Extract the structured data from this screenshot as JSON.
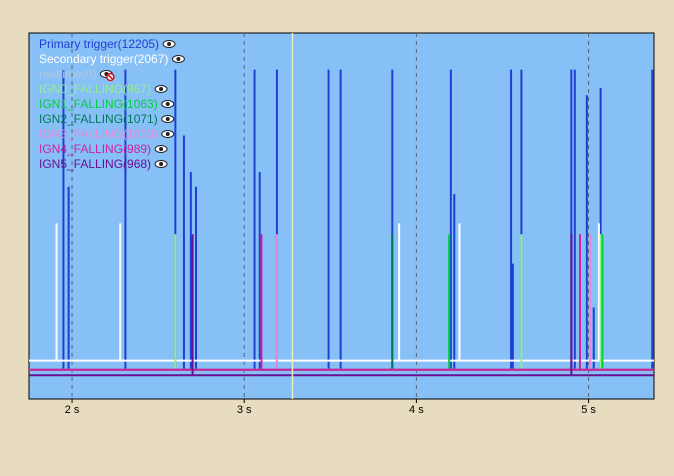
{
  "chart_data": {
    "type": "line",
    "title": "",
    "xlabel": "",
    "ylabel": "",
    "xlim": [
      1.75,
      5.38
    ],
    "x_ticks": [
      {
        "value": 2,
        "label": "2 s"
      },
      {
        "value": 3,
        "label": "3 s"
      },
      {
        "value": 4,
        "label": "4 s"
      },
      {
        "value": 5,
        "label": "5 s"
      }
    ],
    "grid": "vertical-dashed",
    "legend_position": "top-left",
    "background_color": "#87bff7",
    "cursor_x": 3.28,
    "series": [
      {
        "name": "Primary trigger(12205)",
        "color": "#1f3fd0",
        "baseline": 0.08,
        "events": [
          {
            "x": 1.95,
            "level": 0.9
          },
          {
            "x": 1.98,
            "level": 0.58
          },
          {
            "x": 2.31,
            "level": 0.9
          },
          {
            "x": 2.6,
            "level": 0.9
          },
          {
            "x": 2.65,
            "level": 0.72
          },
          {
            "x": 2.69,
            "level": 0.62
          },
          {
            "x": 2.72,
            "level": 0.58
          },
          {
            "x": 3.06,
            "level": 0.9
          },
          {
            "x": 3.09,
            "level": 0.62
          },
          {
            "x": 3.19,
            "level": 0.9
          },
          {
            "x": 3.49,
            "level": 0.9
          },
          {
            "x": 3.56,
            "level": 0.9
          },
          {
            "x": 3.86,
            "level": 0.9
          },
          {
            "x": 4.2,
            "level": 0.9
          },
          {
            "x": 4.22,
            "level": 0.56
          },
          {
            "x": 4.55,
            "level": 0.9
          },
          {
            "x": 4.56,
            "level": 0.37
          },
          {
            "x": 4.61,
            "level": 0.9
          },
          {
            "x": 4.9,
            "level": 0.9
          },
          {
            "x": 4.92,
            "level": 0.9
          },
          {
            "x": 4.99,
            "level": 0.83
          },
          {
            "x": 5.03,
            "level": 0.25
          },
          {
            "x": 5.07,
            "level": 0.85
          },
          {
            "x": 5.37,
            "level": 0.9
          }
        ]
      },
      {
        "name": "Secondary trigger(2067)",
        "color": "#ffffff",
        "baseline": 0.105,
        "events": [
          {
            "x": 1.91,
            "level": 0.48
          },
          {
            "x": 2.28,
            "level": 0.48
          },
          {
            "x": 3.9,
            "level": 0.48
          },
          {
            "x": 4.25,
            "level": 0.48
          },
          {
            "x": 5.06,
            "level": 0.48
          }
        ]
      },
      {
        "name": "realtime(0)",
        "color": "#b0c8e0",
        "baseline": null,
        "events": []
      },
      {
        "name": "IGN0_FALLING(967)",
        "color": "#90f090",
        "baseline": 0.08,
        "events": [
          {
            "x": 2.6,
            "level": 0.45
          },
          {
            "x": 4.61,
            "level": 0.45
          },
          {
            "x": 5.07,
            "level": 0.45
          }
        ]
      },
      {
        "name": "IGN1_FALLING(1063)",
        "color": "#00d040",
        "baseline": 0.08,
        "events": [
          {
            "x": 4.19,
            "level": 0.45
          },
          {
            "x": 5.08,
            "level": 0.45
          }
        ]
      },
      {
        "name": "IGN2_FALLING(1071)",
        "color": "#007a5a",
        "baseline": 0.08,
        "events": [
          {
            "x": 3.86,
            "level": 0.45
          }
        ]
      },
      {
        "name": "IGN3_FALLING(1053)",
        "color": "#e88ad8",
        "baseline": 0.08,
        "events": [
          {
            "x": 3.19,
            "level": 0.45
          },
          {
            "x": 5.01,
            "level": 0.45
          }
        ]
      },
      {
        "name": "IGN4_FALLING(989)",
        "color": "#d020a0",
        "baseline": 0.08,
        "events": [
          {
            "x": 3.1,
            "level": 0.45
          },
          {
            "x": 4.95,
            "level": 0.45
          }
        ]
      },
      {
        "name": "IGN5_FALLING(968)",
        "color": "#6a1090",
        "baseline": 0.065,
        "events": [
          {
            "x": 2.7,
            "level": 0.45
          },
          {
            "x": 4.9,
            "level": 0.45
          }
        ]
      }
    ]
  }
}
